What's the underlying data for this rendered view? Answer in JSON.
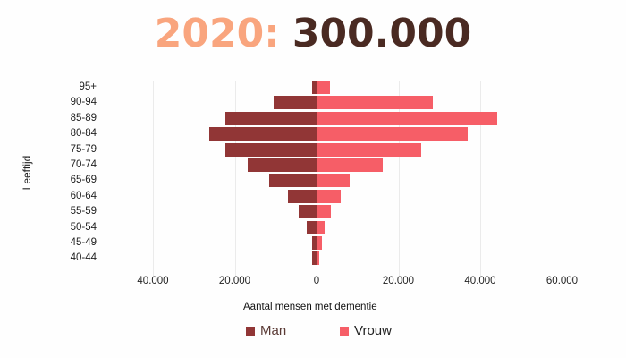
{
  "header": {
    "year": "2020:",
    "total": "300.000"
  },
  "colors": {
    "year": "#f9a57e",
    "total": "#4a2a22",
    "man": "#913636",
    "vrouw": "#f65e67"
  },
  "chart_data": {
    "type": "bar",
    "orientation": "horizontal",
    "subtype": "population-pyramid",
    "title": "2020: 300.000",
    "xlabel": "Aantal mensen met dementie",
    "ylabel": "Leeftijd",
    "categories": [
      "95+",
      "90-94",
      "85-89",
      "80-84",
      "75-79",
      "70-74",
      "65-69",
      "60-64",
      "55-59",
      "50-54",
      "45-49",
      "40-44"
    ],
    "series": [
      {
        "name": "Man",
        "color": "#913636",
        "values": [
          1000,
          10400,
          22200,
          26200,
          22200,
          16800,
          11500,
          6900,
          4300,
          2300,
          1200,
          1000
        ]
      },
      {
        "name": "Vrouw",
        "color": "#f65e67",
        "values": [
          3300,
          28500,
          44200,
          37000,
          25600,
          16200,
          8100,
          5900,
          3500,
          2000,
          1400,
          700
        ]
      }
    ],
    "xticks": [
      "40.000",
      "20.000",
      "0",
      "20.000",
      "40.000",
      "60.000"
    ],
    "xlim": [
      -40000,
      60000
    ],
    "grid": true,
    "legend_position": "bottom"
  },
  "axis": {
    "xlabel": "Aantal mensen met dementie",
    "ylabel": "Leeftijd",
    "ticks": [
      "40.000",
      "20.000",
      "0",
      "20.000",
      "40.000",
      "60.000"
    ]
  },
  "legend": [
    {
      "label": "Man"
    },
    {
      "label": "Vrouw"
    }
  ]
}
